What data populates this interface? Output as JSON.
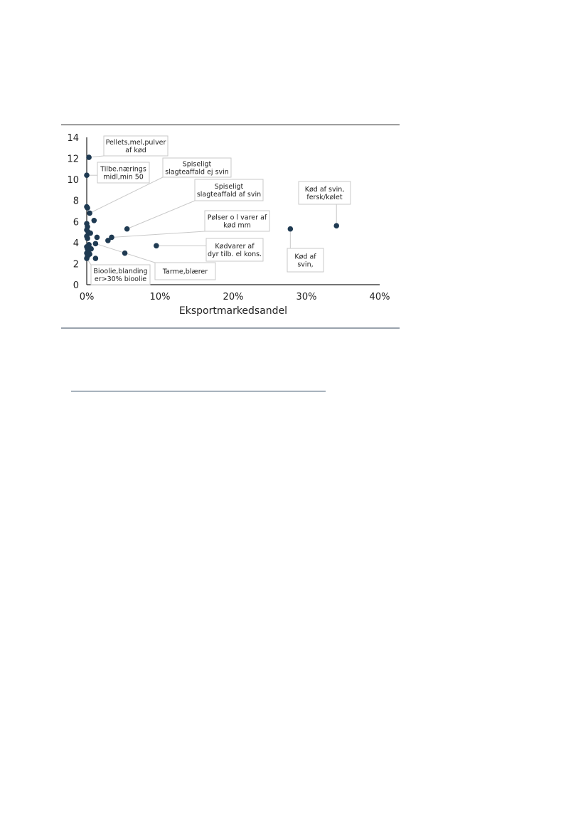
{
  "chart_data": {
    "type": "scatter",
    "title": "",
    "xlabel": "Eksportmarkedsandel",
    "ylabel": "",
    "xlim": [
      0,
      0.4
    ],
    "ylim": [
      0,
      14
    ],
    "x_ticks": [
      "0%",
      "10%",
      "20%",
      "30%",
      "40%"
    ],
    "y_ticks": [
      "0",
      "2",
      "4",
      "6",
      "8",
      "10",
      "12",
      "14"
    ],
    "grid": false,
    "legend": "none",
    "marker_color": "#1f3a52",
    "points": [
      {
        "x": 0.003,
        "y": 12.1
      },
      {
        "x": 0.0,
        "y": 10.4
      },
      {
        "x": 0.0,
        "y": 7.4
      },
      {
        "x": 0.001,
        "y": 7.3
      },
      {
        "x": 0.004,
        "y": 6.8
      },
      {
        "x": 0.01,
        "y": 6.1
      },
      {
        "x": 0.0,
        "y": 5.8
      },
      {
        "x": 0.001,
        "y": 5.5
      },
      {
        "x": 0.0,
        "y": 5.2
      },
      {
        "x": 0.002,
        "y": 5.0
      },
      {
        "x": 0.005,
        "y": 4.9
      },
      {
        "x": 0.0,
        "y": 4.6
      },
      {
        "x": 0.001,
        "y": 4.4
      },
      {
        "x": 0.014,
        "y": 4.5
      },
      {
        "x": 0.034,
        "y": 4.5
      },
      {
        "x": 0.029,
        "y": 4.2
      },
      {
        "x": 0.012,
        "y": 3.9
      },
      {
        "x": 0.003,
        "y": 3.8
      },
      {
        "x": 0.0,
        "y": 3.6
      },
      {
        "x": 0.001,
        "y": 3.4
      },
      {
        "x": 0.006,
        "y": 3.4
      },
      {
        "x": 0.002,
        "y": 3.2
      },
      {
        "x": 0.0,
        "y": 3.0
      },
      {
        "x": 0.004,
        "y": 2.9
      },
      {
        "x": 0.001,
        "y": 2.7
      },
      {
        "x": 0.0,
        "y": 2.5
      },
      {
        "x": 0.012,
        "y": 2.5
      },
      {
        "x": 0.052,
        "y": 3.0
      },
      {
        "x": 0.055,
        "y": 5.3
      },
      {
        "x": 0.095,
        "y": 3.7
      },
      {
        "x": 0.278,
        "y": 5.3
      },
      {
        "x": 0.341,
        "y": 5.6
      }
    ],
    "annotations": [
      {
        "lines": [
          "Pellets,mel,pulver",
          "af kød"
        ],
        "point": {
          "x": 0.003,
          "y": 12.1
        }
      },
      {
        "lines": [
          "Tilbe.nærings",
          "midl,min 50"
        ],
        "point": {
          "x": 0.0,
          "y": 10.4
        }
      },
      {
        "lines": [
          "Spiseligt",
          "slagteaffald ej svin"
        ],
        "point": {
          "x": 0.004,
          "y": 6.8
        }
      },
      {
        "lines": [
          "Spiseligt",
          "slagteaffald af svin"
        ],
        "point": {
          "x": 0.055,
          "y": 5.3
        }
      },
      {
        "lines": [
          "Kød af svin,",
          "fersk/kølet"
        ],
        "point": {
          "x": 0.341,
          "y": 5.6
        }
      },
      {
        "lines": [
          "Pølser o l varer af",
          "kød mm"
        ],
        "point": {
          "x": 0.034,
          "y": 4.5
        }
      },
      {
        "lines": [
          "Kødvarer af",
          "dyr tilb. el kons."
        ],
        "point": {
          "x": 0.095,
          "y": 3.7
        }
      },
      {
        "lines": [
          "Kød af",
          "svin,"
        ],
        "point": {
          "x": 0.278,
          "y": 5.3
        }
      },
      {
        "lines": [
          "Tarme,blærer"
        ],
        "point": {
          "x": 0.012,
          "y": 3.9
        }
      },
      {
        "lines": [
          "Bioolie,blanding",
          "er>30% bioolie"
        ],
        "point": {
          "x": 0.0,
          "y": 2.5
        }
      }
    ]
  }
}
